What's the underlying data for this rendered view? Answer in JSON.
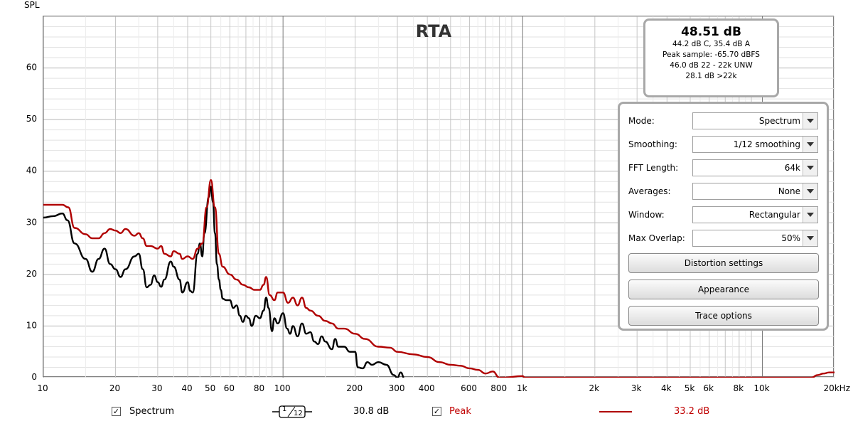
{
  "chart_data": {
    "type": "line",
    "title": "RTA",
    "ylabel": "SPL",
    "xlabel": "",
    "x_unit_label": "20kHz",
    "x_scale": "log",
    "xlim": [
      10,
      20000
    ],
    "ylim": [
      0,
      70
    ],
    "grid": true,
    "y_ticks": [
      0,
      10,
      20,
      30,
      40,
      50,
      60
    ],
    "x_ticks": [
      {
        "v": 10,
        "label": "10"
      },
      {
        "v": 20,
        "label": "20"
      },
      {
        "v": 30,
        "label": "30"
      },
      {
        "v": 40,
        "label": "40"
      },
      {
        "v": 50,
        "label": "50"
      },
      {
        "v": 60,
        "label": "60"
      },
      {
        "v": 80,
        "label": "80"
      },
      {
        "v": 100,
        "label": "100"
      },
      {
        "v": 200,
        "label": "200"
      },
      {
        "v": 300,
        "label": "300"
      },
      {
        "v": 400,
        "label": "400"
      },
      {
        "v": 600,
        "label": "600"
      },
      {
        "v": 800,
        "label": "800"
      },
      {
        "v": 1000,
        "label": "1k"
      },
      {
        "v": 2000,
        "label": "2k"
      },
      {
        "v": 3000,
        "label": "3k"
      },
      {
        "v": 4000,
        "label": "4k"
      },
      {
        "v": 5000,
        "label": "5k"
      },
      {
        "v": 6000,
        "label": "6k"
      },
      {
        "v": 8000,
        "label": "8k"
      },
      {
        "v": 10000,
        "label": "10k"
      },
      {
        "v": 20000,
        "label": "20kHz"
      }
    ],
    "series": [
      {
        "name": "Spectrum",
        "color": "#000000",
        "points": [
          [
            10,
            31
          ],
          [
            11,
            31.3
          ],
          [
            12,
            31.8
          ],
          [
            12.6,
            30.5
          ],
          [
            13.5,
            26
          ],
          [
            15,
            23
          ],
          [
            16,
            20.5
          ],
          [
            17,
            23
          ],
          [
            18,
            25
          ],
          [
            19,
            22
          ],
          [
            20,
            21
          ],
          [
            21,
            19.5
          ],
          [
            22,
            21
          ],
          [
            24,
            23.5
          ],
          [
            25,
            24
          ],
          [
            26,
            21
          ],
          [
            27,
            17.5
          ],
          [
            28,
            18
          ],
          [
            29,
            19.8
          ],
          [
            30,
            18.5
          ],
          [
            31,
            17.6
          ],
          [
            32,
            19
          ],
          [
            34,
            22.5
          ],
          [
            35,
            21.5
          ],
          [
            37,
            19
          ],
          [
            38,
            16.5
          ],
          [
            40,
            18.5
          ],
          [
            41,
            16.8
          ],
          [
            42,
            16.5
          ],
          [
            44,
            24
          ],
          [
            45,
            26
          ],
          [
            46,
            23.5
          ],
          [
            47,
            28
          ],
          [
            49,
            35
          ],
          [
            50,
            37
          ],
          [
            51,
            34
          ],
          [
            52,
            28
          ],
          [
            53,
            22
          ],
          [
            54,
            19
          ],
          [
            55,
            17
          ],
          [
            56,
            15.3
          ],
          [
            58,
            15
          ],
          [
            60,
            15
          ],
          [
            62,
            13.5
          ],
          [
            64,
            14
          ],
          [
            66,
            12
          ],
          [
            68,
            10.8
          ],
          [
            70,
            12
          ],
          [
            72,
            11.5
          ],
          [
            74,
            10
          ],
          [
            77,
            12
          ],
          [
            80,
            11.5
          ],
          [
            83,
            13
          ],
          [
            85,
            15.5
          ],
          [
            87,
            13.5
          ],
          [
            90,
            9
          ],
          [
            92,
            11.5
          ],
          [
            95,
            10.5
          ],
          [
            100,
            12.5
          ],
          [
            104,
            9.5
          ],
          [
            107,
            8.5
          ],
          [
            110,
            10
          ],
          [
            115,
            8
          ],
          [
            120,
            10.5
          ],
          [
            125,
            8.5
          ],
          [
            130,
            8.8
          ],
          [
            135,
            7
          ],
          [
            140,
            6.5
          ],
          [
            145,
            8
          ],
          [
            150,
            7
          ],
          [
            160,
            5.5
          ],
          [
            165,
            7.5
          ],
          [
            170,
            6
          ],
          [
            180,
            6
          ],
          [
            190,
            5
          ],
          [
            200,
            5
          ],
          [
            205,
            2
          ],
          [
            215,
            1.8
          ],
          [
            225,
            3
          ],
          [
            235,
            2.5
          ],
          [
            250,
            3
          ],
          [
            270,
            2.5
          ],
          [
            290,
            0.5
          ],
          [
            300,
            0
          ],
          [
            310,
            1
          ],
          [
            320,
            0
          ]
        ]
      },
      {
        "name": "Peak",
        "color": "#b00000",
        "points": [
          [
            10,
            33.5
          ],
          [
            12,
            33.5
          ],
          [
            12.7,
            33
          ],
          [
            13.5,
            29
          ],
          [
            15,
            27.8
          ],
          [
            16,
            27
          ],
          [
            17,
            27
          ],
          [
            18,
            28
          ],
          [
            19,
            28.8
          ],
          [
            20,
            28.5
          ],
          [
            21,
            28
          ],
          [
            22,
            28.8
          ],
          [
            24,
            27.5
          ],
          [
            25,
            28
          ],
          [
            26,
            27
          ],
          [
            27,
            25.5
          ],
          [
            28,
            25.5
          ],
          [
            30,
            25
          ],
          [
            31,
            25.5
          ],
          [
            32,
            24
          ],
          [
            34,
            23.5
          ],
          [
            35,
            24.5
          ],
          [
            37,
            24
          ],
          [
            38,
            23
          ],
          [
            40,
            23.5
          ],
          [
            42,
            23
          ],
          [
            44,
            25
          ],
          [
            46,
            26
          ],
          [
            48,
            33
          ],
          [
            50,
            38.3
          ],
          [
            52,
            33
          ],
          [
            54,
            24
          ],
          [
            56,
            21.5
          ],
          [
            60,
            20
          ],
          [
            64,
            19
          ],
          [
            68,
            18
          ],
          [
            72,
            17.5
          ],
          [
            76,
            17
          ],
          [
            80,
            17
          ],
          [
            83,
            18
          ],
          [
            85,
            19.5
          ],
          [
            88,
            16
          ],
          [
            92,
            15
          ],
          [
            95,
            16.5
          ],
          [
            100,
            16.5
          ],
          [
            105,
            14.5
          ],
          [
            110,
            15.5
          ],
          [
            115,
            14
          ],
          [
            120,
            15.5
          ],
          [
            125,
            13.5
          ],
          [
            130,
            13
          ],
          [
            140,
            12
          ],
          [
            150,
            11
          ],
          [
            160,
            10.5
          ],
          [
            170,
            9.5
          ],
          [
            180,
            9.5
          ],
          [
            200,
            8.5
          ],
          [
            220,
            7.5
          ],
          [
            250,
            6
          ],
          [
            280,
            5.8
          ],
          [
            300,
            5
          ],
          [
            350,
            4.5
          ],
          [
            400,
            4
          ],
          [
            450,
            3
          ],
          [
            500,
            2.5
          ],
          [
            550,
            2.3
          ],
          [
            600,
            1.8
          ],
          [
            650,
            1.5
          ],
          [
            700,
            0.8
          ],
          [
            750,
            1.2
          ],
          [
            800,
            0
          ],
          [
            820,
            0
          ],
          [
            1000,
            0.3
          ],
          [
            1020,
            0
          ],
          [
            16000,
            0
          ],
          [
            17000,
            0.5
          ],
          [
            18000,
            0.8
          ],
          [
            19000,
            1
          ],
          [
            20000,
            1
          ]
        ]
      }
    ]
  },
  "readout": {
    "main": "48.51 dB",
    "lines": [
      "44.2 dB C, 35.4 dB A",
      "Peak sample: -65.70 dBFS",
      "46.0 dB 22 - 22k UNW",
      "28.1 dB >22k"
    ]
  },
  "controls": {
    "rows": [
      {
        "label": "Mode:",
        "value": "Spectrum"
      },
      {
        "label": "Smoothing:",
        "value": "1/12 smoothing"
      },
      {
        "label": "FFT Length:",
        "value": "64k"
      },
      {
        "label": "Averages:",
        "value": "None"
      },
      {
        "label": "Window:",
        "value": "Rectangular"
      },
      {
        "label": "Max Overlap:",
        "value": "50%"
      }
    ],
    "buttons": [
      "Distortion settings",
      "Appearance",
      "Trace options"
    ]
  },
  "legend": {
    "spectrum": {
      "label": "Spectrum",
      "checked": "✓",
      "value": "30.8 dB",
      "smoothing_num": "1",
      "smoothing_den": "12"
    },
    "peak": {
      "label": "Peak",
      "checked": "✓",
      "value": "33.2 dB",
      "color": "#c00000"
    }
  }
}
